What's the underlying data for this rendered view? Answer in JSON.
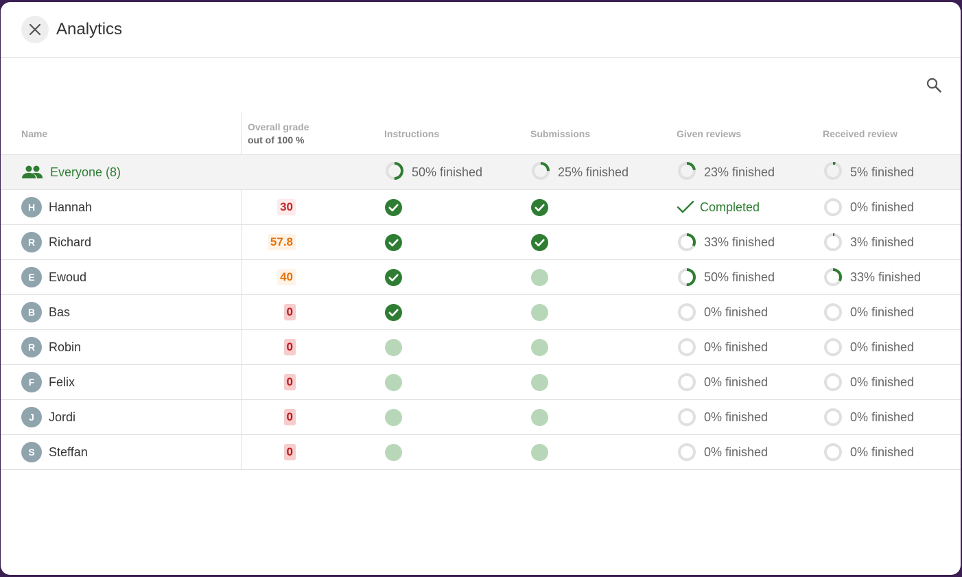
{
  "dialog": {
    "title": "Analytics"
  },
  "header": {
    "name": "Name",
    "grade": "Overall grade",
    "grade_sub": "out of 100 %",
    "instructions": "Instructions",
    "submissions": "Submissions",
    "given": "Given reviews",
    "received": "Received review"
  },
  "everyone": {
    "label": "Everyone (8)",
    "instructions": {
      "text": "50% finished",
      "value": 0.5
    },
    "submissions": {
      "text": "25% finished",
      "value": 0.25
    },
    "given": {
      "text": "23% finished",
      "value": 0.23
    },
    "received": {
      "text": "5% finished",
      "value": 0.05
    }
  },
  "rows": [
    {
      "initial": "H",
      "name": "Hannah",
      "grade": "30",
      "grade_level": "low",
      "instructions": "done",
      "submissions": "done",
      "given": {
        "text": "Completed",
        "value": 1.0
      },
      "received": {
        "text": "0% finished",
        "value": 0
      }
    },
    {
      "initial": "R",
      "name": "Richard",
      "grade": "57.8",
      "grade_level": "mid",
      "instructions": "done",
      "submissions": "done",
      "given": {
        "text": "33% finished",
        "value": 0.33
      },
      "received": {
        "text": "3% finished",
        "value": 0.03
      }
    },
    {
      "initial": "E",
      "name": "Ewoud",
      "grade": "40",
      "grade_level": "mid",
      "instructions": "done",
      "submissions": "pending",
      "given": {
        "text": "50% finished",
        "value": 0.5
      },
      "received": {
        "text": "33% finished",
        "value": 0.33
      }
    },
    {
      "initial": "B",
      "name": "Bas",
      "grade": "0",
      "grade_level": "zero",
      "instructions": "done",
      "submissions": "pending",
      "given": {
        "text": "0% finished",
        "value": 0
      },
      "received": {
        "text": "0% finished",
        "value": 0
      }
    },
    {
      "initial": "R",
      "name": "Robin",
      "grade": "0",
      "grade_level": "zero",
      "instructions": "pending",
      "submissions": "pending",
      "given": {
        "text": "0% finished",
        "value": 0
      },
      "received": {
        "text": "0% finished",
        "value": 0
      }
    },
    {
      "initial": "F",
      "name": "Felix",
      "grade": "0",
      "grade_level": "zero",
      "instructions": "pending",
      "submissions": "pending",
      "given": {
        "text": "0% finished",
        "value": 0
      },
      "received": {
        "text": "0% finished",
        "value": 0
      }
    },
    {
      "initial": "J",
      "name": "Jordi",
      "grade": "0",
      "grade_level": "zero",
      "instructions": "pending",
      "submissions": "pending",
      "given": {
        "text": "0% finished",
        "value": 0
      },
      "received": {
        "text": "0% finished",
        "value": 0
      }
    },
    {
      "initial": "S",
      "name": "Steffan",
      "grade": "0",
      "grade_level": "zero",
      "instructions": "pending",
      "submissions": "pending",
      "given": {
        "text": "0% finished",
        "value": 0
      },
      "received": {
        "text": "0% finished",
        "value": 0
      }
    }
  ],
  "colors": {
    "accent_green": "#2e7d32",
    "pending_dot": "#b8d7b8",
    "ring_track": "#e0e0e0",
    "grade_low_text": "#c62828",
    "grade_low_bg": "#fdeaea",
    "grade_mid_text": "#e8710a",
    "grade_mid_bg": "#fef3e6",
    "grade_zero_text": "#b71c1c",
    "grade_zero_bg": "#f6cccc"
  },
  "icons": {
    "close": "close-icon",
    "search": "search-icon",
    "group": "group-icon",
    "check_circle": "check-circle-icon",
    "check": "check-icon"
  }
}
